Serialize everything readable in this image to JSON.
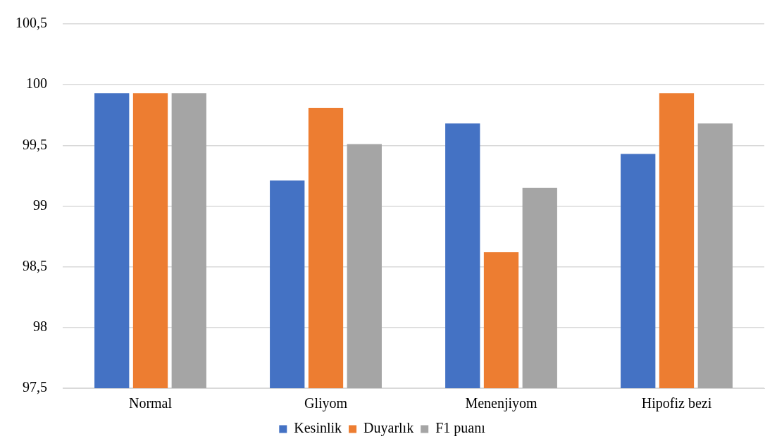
{
  "chart_data": {
    "type": "bar",
    "categories": [
      "Normal",
      "Gliyom",
      "Menenjiyom",
      "Hipofiz bezi"
    ],
    "series": [
      {
        "name": "Kesinlik",
        "color": "#4472c4",
        "values": [
          99.93,
          99.21,
          99.68,
          99.43
        ]
      },
      {
        "name": "Duyarlık",
        "color": "#ed7d31",
        "values": [
          99.93,
          99.81,
          98.62,
          99.93
        ]
      },
      {
        "name": "F1 puanı",
        "color": "#a5a5a5",
        "values": [
          99.93,
          99.51,
          99.15,
          99.68
        ]
      }
    ],
    "ylim": [
      97.5,
      100.5
    ],
    "yticks": [
      {
        "value": 97.5,
        "label": "97,5"
      },
      98,
      {
        "value": 98.5,
        "label": "98,5"
      },
      99,
      {
        "value": 99.5,
        "label": "99,5"
      },
      100,
      {
        "value": 100.5,
        "label": "100,5"
      }
    ],
    "grid": "y",
    "legend": "bottom"
  }
}
